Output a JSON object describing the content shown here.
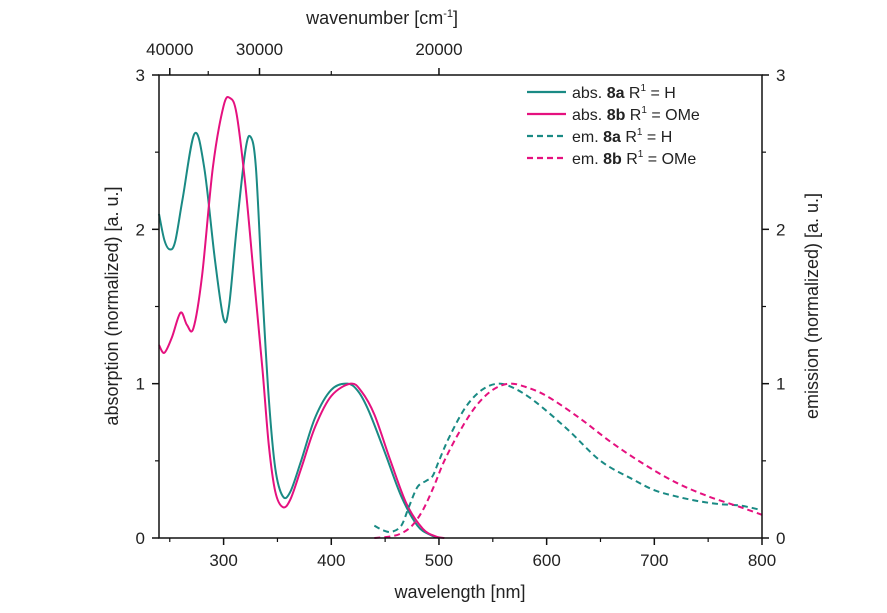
{
  "chart_data": {
    "type": "line",
    "xlabel": "wavelength [nm]",
    "ylabel": "absorption (normalized) [a. u.]",
    "y2label": "emission (normalized) [a. u.]",
    "x2label_main": "wavenumber [cm",
    "x2label_sup": "-1",
    "x2label_end": "]",
    "xlim": [
      240,
      800
    ],
    "ylim": [
      0,
      3
    ],
    "xticks": [
      300,
      400,
      500,
      600,
      700,
      800
    ],
    "yticks": [
      0,
      1,
      2,
      3
    ],
    "x2ticks": [
      40000,
      30000,
      20000
    ],
    "x2minor": [
      35000,
      25000
    ],
    "legend_position": "top-right",
    "grid": false,
    "series": [
      {
        "name": "abs. 8a R1 = H",
        "prefix": "abs. ",
        "compound": "8a",
        "r": " R",
        "sup": "1",
        "suffix": " = H",
        "color": "#1a8a84",
        "dash": false,
        "x": [
          240,
          245,
          250,
          255,
          262,
          273,
          282,
          292,
          300,
          305,
          312,
          320,
          325,
          330,
          336,
          342,
          348,
          355,
          362,
          372,
          385,
          400,
          415,
          425,
          435,
          450,
          465,
          480,
          492,
          500
        ],
        "y": [
          2.1,
          1.93,
          1.87,
          1.92,
          2.2,
          2.62,
          2.4,
          1.8,
          1.42,
          1.5,
          2.0,
          2.5,
          2.6,
          2.4,
          1.6,
          0.9,
          0.45,
          0.27,
          0.3,
          0.5,
          0.78,
          0.96,
          1.0,
          0.95,
          0.82,
          0.55,
          0.27,
          0.08,
          0.02,
          0.0
        ]
      },
      {
        "name": "abs. 8b R1 = OMe",
        "prefix": "abs. ",
        "compound": "8b",
        "r": " R",
        "sup": "1",
        "suffix": " = OMe",
        "color": "#e5117f",
        "dash": false,
        "x": [
          240,
          245,
          252,
          260,
          266,
          272,
          280,
          290,
          300,
          306,
          312,
          320,
          328,
          336,
          342,
          348,
          355,
          362,
          372,
          385,
          400,
          418,
          428,
          440,
          455,
          470,
          485,
          497,
          505
        ],
        "y": [
          1.25,
          1.2,
          1.3,
          1.46,
          1.38,
          1.36,
          1.7,
          2.4,
          2.8,
          2.85,
          2.75,
          2.3,
          1.7,
          1.1,
          0.6,
          0.3,
          0.2,
          0.25,
          0.45,
          0.72,
          0.92,
          1.0,
          0.95,
          0.8,
          0.5,
          0.22,
          0.06,
          0.01,
          0.0
        ]
      },
      {
        "name": "em. 8a R1 = H",
        "prefix": "em. ",
        "compound": "8a",
        "r": " R",
        "sup": "1",
        "suffix": " = H",
        "color": "#1a8a84",
        "dash": true,
        "x": [
          440,
          448,
          456,
          465,
          472,
          480,
          488,
          494,
          500,
          510,
          525,
          540,
          555,
          570,
          590,
          620,
          650,
          680,
          700,
          720,
          740,
          760,
          780,
          800
        ],
        "y": [
          0.08,
          0.05,
          0.04,
          0.08,
          0.2,
          0.33,
          0.37,
          0.4,
          0.5,
          0.66,
          0.85,
          0.96,
          1.0,
          0.97,
          0.88,
          0.7,
          0.5,
          0.38,
          0.31,
          0.27,
          0.24,
          0.22,
          0.21,
          0.18
        ]
      },
      {
        "name": "em. 8b R1 = OMe",
        "prefix": "em. ",
        "compound": "8b",
        "r": " R",
        "sup": "1",
        "suffix": " = OMe",
        "color": "#e5117f",
        "dash": true,
        "x": [
          440,
          455,
          465,
          475,
          485,
          495,
          505,
          520,
          535,
          550,
          565,
          580,
          600,
          630,
          660,
          690,
          720,
          750,
          780,
          800
        ],
        "y": [
          0.0,
          0.01,
          0.03,
          0.08,
          0.18,
          0.33,
          0.5,
          0.7,
          0.86,
          0.96,
          1.0,
          0.98,
          0.92,
          0.78,
          0.62,
          0.48,
          0.36,
          0.27,
          0.2,
          0.15
        ]
      }
    ]
  }
}
